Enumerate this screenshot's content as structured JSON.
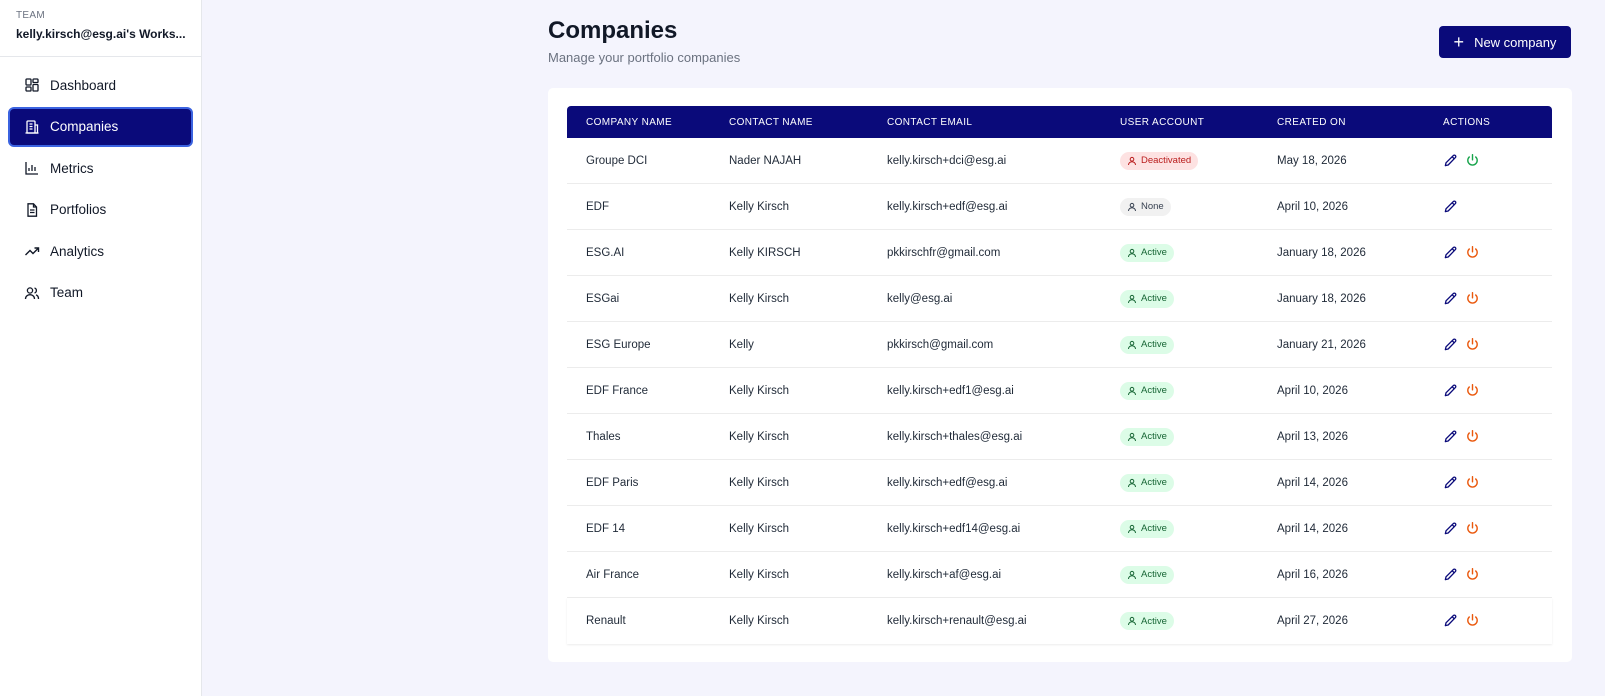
{
  "sidebar": {
    "team_label": "TEAM",
    "team_name": "kelly.kirsch@esg.ai's Works...",
    "items": [
      {
        "label": "Dashboard",
        "icon": "dashboard-icon"
      },
      {
        "label": "Companies",
        "icon": "building-icon",
        "active": true
      },
      {
        "label": "Metrics",
        "icon": "bar-chart-icon"
      },
      {
        "label": "Portfolios",
        "icon": "document-icon"
      },
      {
        "label": "Analytics",
        "icon": "trending-up-icon"
      },
      {
        "label": "Team",
        "icon": "users-icon"
      }
    ]
  },
  "header": {
    "title": "Companies",
    "subtitle": "Manage your portfolio companies",
    "new_button": "New company"
  },
  "table": {
    "columns": [
      "COMPANY NAME",
      "CONTACT NAME",
      "CONTACT EMAIL",
      "USER ACCOUNT",
      "CREATED ON",
      "ACTIONS"
    ],
    "rows": [
      {
        "company": "Groupe DCI",
        "contact": "Nader NAJAH",
        "email": "kelly.kirsch+dci@esg.ai",
        "account": "Deactivated",
        "created": "May 18, 2026"
      },
      {
        "company": "EDF",
        "contact": "Kelly Kirsch",
        "email": "kelly.kirsch+edf@esg.ai",
        "account": "None",
        "created": "April 10, 2026"
      },
      {
        "company": "ESG.AI",
        "contact": "Kelly KIRSCH",
        "email": "pkkirschfr@gmail.com",
        "account": "Active",
        "created": "January 18, 2026"
      },
      {
        "company": "ESGai",
        "contact": "Kelly Kirsch",
        "email": "kelly@esg.ai",
        "account": "Active",
        "created": "January 18, 2026"
      },
      {
        "company": "ESG Europe",
        "contact": "Kelly",
        "email": "pkkirsch@gmail.com",
        "account": "Active",
        "created": "January 21, 2026"
      },
      {
        "company": "EDF France",
        "contact": "Kelly Kirsch",
        "email": "kelly.kirsch+edf1@esg.ai",
        "account": "Active",
        "created": "April 10, 2026"
      },
      {
        "company": "Thales",
        "contact": "Kelly Kirsch",
        "email": "kelly.kirsch+thales@esg.ai",
        "account": "Active",
        "created": "April 13, 2026"
      },
      {
        "company": "EDF Paris",
        "contact": "Kelly Kirsch",
        "email": "kelly.kirsch+edf@esg.ai",
        "account": "Active",
        "created": "April 14, 2026"
      },
      {
        "company": "EDF 14",
        "contact": "Kelly Kirsch",
        "email": "kelly.kirsch+edf14@esg.ai",
        "account": "Active",
        "created": "April 14, 2026"
      },
      {
        "company": "Air France",
        "contact": "Kelly Kirsch",
        "email": "kelly.kirsch+af@esg.ai",
        "account": "Active",
        "created": "April 16, 2026"
      },
      {
        "company": "Renault",
        "contact": "Kelly Kirsch",
        "email": "kelly.kirsch+renault@esg.ai",
        "account": "Active",
        "created": "April 27, 2026"
      }
    ]
  },
  "colors": {
    "brand": "#0a0a7a",
    "activate_power": "#16a34a",
    "deactivate_power": "#ea580c",
    "edit_pencil": "#0a0a7a"
  }
}
